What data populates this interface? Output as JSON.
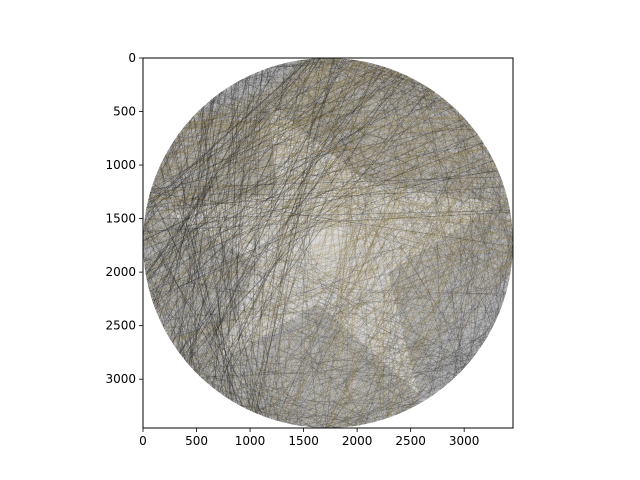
{
  "chart_data": {
    "type": "image",
    "title": "",
    "xlabel": "",
    "ylabel": "",
    "xlim": [
      0,
      3456
    ],
    "ylim": [
      3456,
      0
    ],
    "grid": false,
    "x_ticks": [
      {
        "value": 0,
        "label": "0"
      },
      {
        "value": 500,
        "label": "500"
      },
      {
        "value": 1000,
        "label": "1000"
      },
      {
        "value": 1500,
        "label": "1500"
      },
      {
        "value": 2000,
        "label": "2000"
      },
      {
        "value": 2500,
        "label": "2500"
      },
      {
        "value": 3000,
        "label": "3000"
      }
    ],
    "y_ticks": [
      {
        "value": 0,
        "label": "0"
      },
      {
        "value": 500,
        "label": "500"
      },
      {
        "value": 1000,
        "label": "1000"
      },
      {
        "value": 1500,
        "label": "1500"
      },
      {
        "value": 2000,
        "label": "2000"
      },
      {
        "value": 2500,
        "label": "2500"
      },
      {
        "value": 3000,
        "label": "3000"
      }
    ],
    "image": {
      "description_free": true,
      "circle": {
        "cx": 1728,
        "cy": 1728,
        "r": 1728
      },
      "colors": {
        "thread_dark": "#2a2a2a",
        "thread_gold": "#8a7430",
        "background": "#ffffff"
      }
    }
  }
}
